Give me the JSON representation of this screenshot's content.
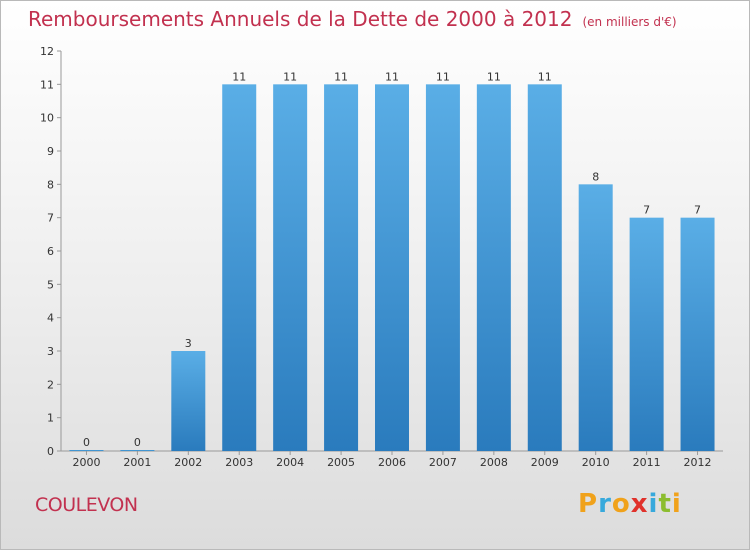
{
  "header": {
    "title": "Remboursements Annuels de la Dette de 2000 à 2012",
    "unit": "(en milliers d'€)"
  },
  "commune": "COULEVON",
  "logo": {
    "text": "Proxiti",
    "letters": [
      "P",
      "r",
      "o",
      "x",
      "i",
      "t",
      "i"
    ],
    "colors": [
      "#f0a21b",
      "#37a9dc",
      "#f0a21b",
      "#e0312b",
      "#37a9dc",
      "#8cbd2f",
      "#f0a21b"
    ]
  },
  "colors": {
    "bar_top": "#5aaee6",
    "bar_bottom": "#2a7bbd",
    "title": "#c2314f"
  },
  "chart_data": {
    "type": "bar",
    "categories": [
      "2000",
      "2001",
      "2002",
      "2003",
      "2004",
      "2005",
      "2006",
      "2007",
      "2008",
      "2009",
      "2010",
      "2011",
      "2012"
    ],
    "values": [
      0,
      0,
      3,
      11,
      11,
      11,
      11,
      11,
      11,
      11,
      8,
      7,
      7
    ],
    "value_labels": [
      "0",
      "0",
      "3",
      "11",
      "11",
      "11",
      "11",
      "11",
      "11",
      "11",
      "8",
      "7",
      "7"
    ],
    "ylim": [
      0,
      12
    ],
    "yticks": [
      0,
      1,
      2,
      3,
      4,
      5,
      6,
      7,
      8,
      9,
      10,
      11,
      12
    ],
    "grid": false
  }
}
